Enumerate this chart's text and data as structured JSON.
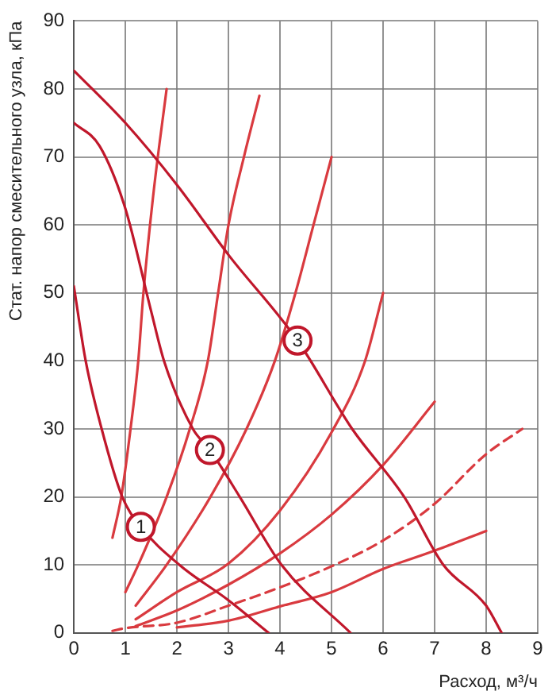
{
  "chart_data": {
    "type": "line",
    "xlabel": "Расход, м³/ч",
    "ylabel": "Стат. напор смесительного узла, кПа",
    "xlim": [
      0,
      9
    ],
    "xticks": [
      0,
      1,
      2,
      3,
      4,
      5,
      6,
      7,
      8,
      9
    ],
    "ylim": [
      0,
      90
    ],
    "yticks": [
      0,
      10,
      20,
      30,
      40,
      50,
      60,
      70,
      80,
      90
    ],
    "grid": true,
    "legend": false,
    "marker": "none",
    "series": [
      {
        "color": "#c0172b",
        "line_style": "solid",
        "x": [
          0,
          0.23,
          0.54,
          0.94,
          1.3,
          2.05,
          3,
          3.78
        ],
        "values": [
          51,
          40,
          30,
          20,
          15.6,
          10,
          4.8,
          0
        ]
      },
      {
        "color": "#c0172b",
        "line_style": "solid",
        "x": [
          0,
          0.5,
          1,
          1.5,
          1.75,
          2.31,
          2.64,
          3.22,
          4.03,
          5.37
        ],
        "values": [
          75,
          71.6,
          62.4,
          47.3,
          40,
          30,
          26.9,
          20,
          10,
          0
        ]
      },
      {
        "color": "#c0172b",
        "line_style": "solid",
        "x": [
          0,
          1,
          2,
          3,
          4.34,
          5.4,
          6.41,
          7.17,
          8,
          8.3
        ],
        "values": [
          82.7,
          75,
          65.9,
          55.6,
          43,
          30,
          20,
          10,
          4,
          0
        ]
      },
      {
        "color": "#d93a3f",
        "line_style": "solid",
        "x": [
          0.75,
          0.92,
          1.1,
          1.25,
          1.35,
          1.55,
          1.8
        ],
        "values": [
          14,
          20,
          30,
          40,
          50,
          65,
          80
        ]
      },
      {
        "color": "#d93a3f",
        "line_style": "solid",
        "x": [
          1,
          1.25,
          1.8,
          2.25,
          2.6,
          2.8,
          3,
          3.3,
          3.6
        ],
        "values": [
          6,
          10,
          20,
          30,
          40,
          50,
          60,
          70,
          79
        ]
      },
      {
        "color": "#d93a3f",
        "line_style": "solid",
        "x": [
          1.2,
          1.8,
          2.65,
          3.35,
          3.9,
          4.3,
          4.65,
          5
        ],
        "values": [
          4,
          10,
          20,
          30,
          40,
          50,
          60,
          70
        ]
      },
      {
        "color": "#d93a3f",
        "line_style": "solid",
        "x": [
          1.2,
          2,
          3,
          4,
          5,
          5.65,
          6
        ],
        "values": [
          2,
          6,
          10.2,
          18,
          29.5,
          40,
          50
        ]
      },
      {
        "color": "#d93a3f",
        "line_style": "solid",
        "x": [
          1.2,
          2,
          3,
          4,
          5,
          6,
          7
        ],
        "values": [
          1,
          3.3,
          7.1,
          11.7,
          17.4,
          24.7,
          34
        ]
      },
      {
        "color": "#d93a3f",
        "line_style": "dashed",
        "x": [
          0.75,
          1,
          2,
          3,
          4,
          5,
          6,
          7,
          8,
          8.7
        ],
        "values": [
          0.3,
          0.7,
          1.5,
          4,
          6.7,
          9.8,
          13.6,
          19,
          26.3,
          30
        ]
      },
      {
        "color": "#d93a3f",
        "line_style": "solid",
        "x": [
          2,
          3,
          4,
          5,
          6,
          7,
          8
        ],
        "values": [
          0.8,
          1.8,
          3.9,
          6,
          9.4,
          12.1,
          15
        ]
      }
    ],
    "annotations": [
      {
        "text": "1",
        "x": 1.3,
        "y": 15.6
      },
      {
        "text": "2",
        "x": 2.64,
        "y": 26.9
      },
      {
        "text": "3",
        "x": 4.34,
        "y": 43
      }
    ]
  }
}
